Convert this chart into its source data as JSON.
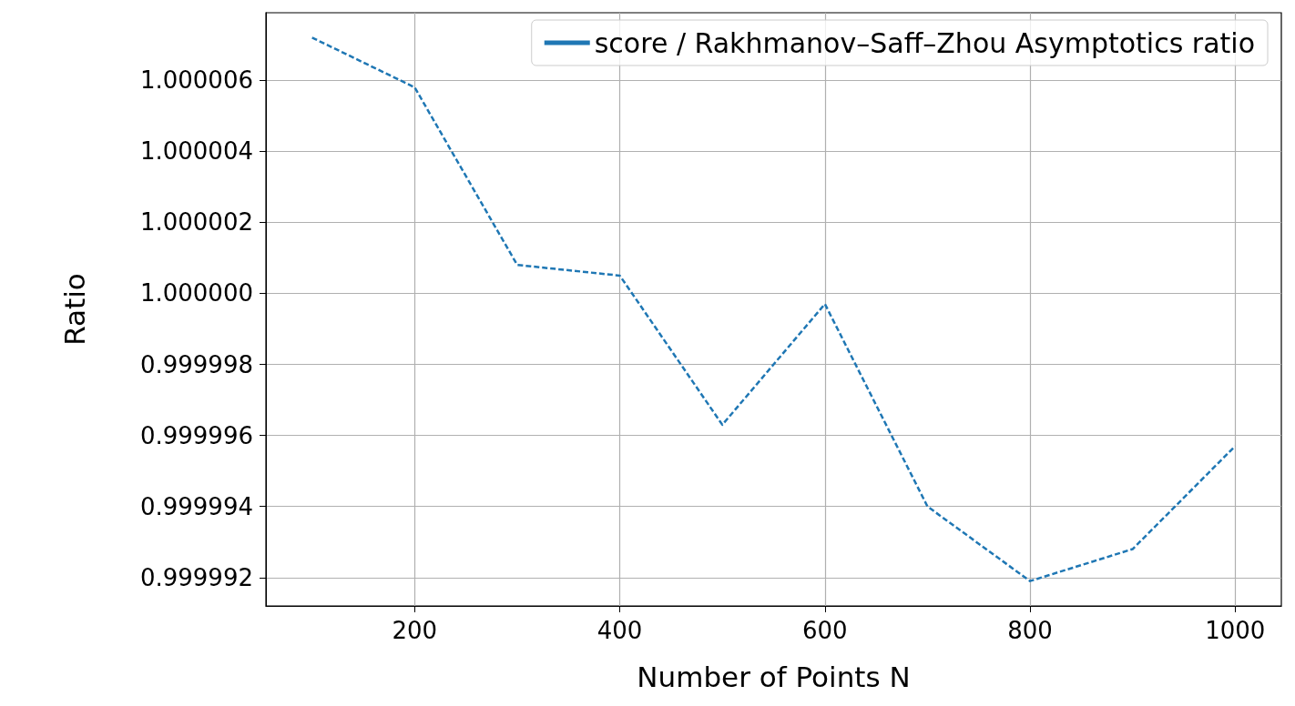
{
  "chart_data": {
    "type": "line",
    "xlabel": "Number of Points N",
    "ylabel": "Ratio",
    "x": [
      100,
      200,
      300,
      400,
      500,
      600,
      700,
      800,
      900,
      1000
    ],
    "series": [
      {
        "name": "score / Rakhmanov–Saff–Zhou Asymptotics ratio",
        "color": "#1f77b4",
        "values": [
          1.0000072,
          1.0000058,
          1.0000008,
          1.0000005,
          0.9999963,
          0.9999997,
          0.999994,
          0.9999919,
          0.9999928,
          0.9999957
        ]
      }
    ],
    "xlim": [
      55,
      1045
    ],
    "xticks": [
      200,
      400,
      600,
      800,
      1000
    ],
    "ylim": [
      0.9999912,
      1.0000079
    ],
    "yticks": [
      0.999992,
      0.999994,
      0.999996,
      0.999998,
      {
        "value": 1,
        "label": "1.000000"
      },
      1.000002,
      1.000004,
      1.000006
    ],
    "grid": true,
    "legend": "top right",
    "marker": "none",
    "line_style": "dashed"
  }
}
